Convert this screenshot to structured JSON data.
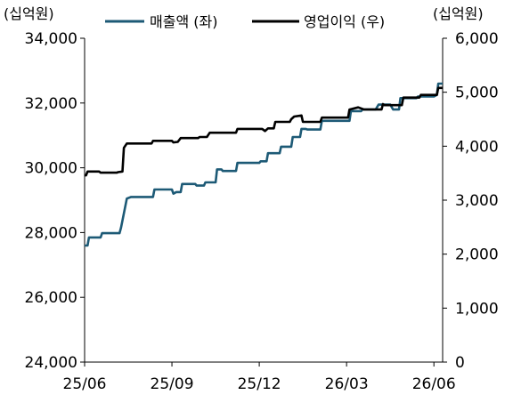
{
  "chart_data": {
    "type": "line",
    "title": "",
    "y_left_unit": "(십억원)",
    "y_right_unit": "(십억원)",
    "x_tick_labels": [
      "25/06",
      "25/09",
      "25/12",
      "26/03",
      "26/06"
    ],
    "y_left_ticks": [
      "24,000",
      "26,000",
      "28,000",
      "30,000",
      "32,000",
      "34,000"
    ],
    "y_right_ticks": [
      "0",
      "1,000",
      "2,000",
      "3,000",
      "4,000",
      "5,000",
      "6,000"
    ],
    "y_left_range": [
      24000,
      34000
    ],
    "y_right_range": [
      0,
      6000
    ],
    "x_range_months": [
      0,
      12.3
    ],
    "legend_position": "top",
    "grid": false,
    "series": [
      {
        "name": "매출액 (좌)",
        "axis": "left",
        "color": "#1d5a76",
        "points": [
          [
            0.0,
            27600
          ],
          [
            0.1,
            27600
          ],
          [
            0.15,
            27850
          ],
          [
            0.45,
            27850
          ],
          [
            0.55,
            27850
          ],
          [
            0.6,
            27980
          ],
          [
            1.2,
            27980
          ],
          [
            1.25,
            28150
          ],
          [
            1.45,
            29050
          ],
          [
            1.6,
            29100
          ],
          [
            2.3,
            29100
          ],
          [
            2.35,
            29100
          ],
          [
            2.4,
            29330
          ],
          [
            3.0,
            29330
          ],
          [
            3.05,
            29200
          ],
          [
            3.15,
            29250
          ],
          [
            3.3,
            29250
          ],
          [
            3.35,
            29500
          ],
          [
            3.8,
            29500
          ],
          [
            3.85,
            29450
          ],
          [
            4.1,
            29450
          ],
          [
            4.15,
            29550
          ],
          [
            4.5,
            29550
          ],
          [
            4.55,
            29950
          ],
          [
            4.7,
            29950
          ],
          [
            4.75,
            29900
          ],
          [
            5.2,
            29900
          ],
          [
            5.25,
            30150
          ],
          [
            6.0,
            30150
          ],
          [
            6.05,
            30200
          ],
          [
            6.25,
            30200
          ],
          [
            6.3,
            30450
          ],
          [
            6.7,
            30450
          ],
          [
            6.75,
            30650
          ],
          [
            7.1,
            30650
          ],
          [
            7.15,
            30950
          ],
          [
            7.4,
            30950
          ],
          [
            7.45,
            31200
          ],
          [
            7.6,
            31200
          ],
          [
            7.65,
            31180
          ],
          [
            8.1,
            31180
          ],
          [
            8.15,
            31450
          ],
          [
            9.1,
            31450
          ],
          [
            9.15,
            31750
          ],
          [
            9.5,
            31750
          ],
          [
            9.55,
            31800
          ],
          [
            10.0,
            31800
          ],
          [
            10.1,
            31950
          ],
          [
            10.5,
            31950
          ],
          [
            10.6,
            31800
          ],
          [
            10.8,
            31800
          ],
          [
            10.85,
            32150
          ],
          [
            11.4,
            32150
          ],
          [
            11.45,
            32200
          ],
          [
            12.0,
            32200
          ],
          [
            12.1,
            32250
          ],
          [
            12.15,
            32600
          ],
          [
            12.3,
            32600
          ]
        ]
      },
      {
        "name": "영업이익 (우)",
        "axis": "right",
        "color": "#000000",
        "points": [
          [
            0.0,
            3460
          ],
          [
            0.05,
            3460
          ],
          [
            0.1,
            3530
          ],
          [
            0.5,
            3530
          ],
          [
            0.55,
            3510
          ],
          [
            1.1,
            3510
          ],
          [
            1.15,
            3520
          ],
          [
            1.3,
            3530
          ],
          [
            1.35,
            3970
          ],
          [
            1.45,
            4050
          ],
          [
            1.6,
            4050
          ],
          [
            2.3,
            4050
          ],
          [
            2.35,
            4100
          ],
          [
            3.0,
            4100
          ],
          [
            3.05,
            4070
          ],
          [
            3.2,
            4080
          ],
          [
            3.3,
            4150
          ],
          [
            3.9,
            4150
          ],
          [
            3.95,
            4170
          ],
          [
            4.2,
            4170
          ],
          [
            4.3,
            4250
          ],
          [
            5.2,
            4250
          ],
          [
            5.25,
            4320
          ],
          [
            6.1,
            4320
          ],
          [
            6.2,
            4280
          ],
          [
            6.3,
            4330
          ],
          [
            6.5,
            4330
          ],
          [
            6.55,
            4450
          ],
          [
            7.05,
            4450
          ],
          [
            7.1,
            4500
          ],
          [
            7.2,
            4550
          ],
          [
            7.45,
            4570
          ],
          [
            7.5,
            4450
          ],
          [
            8.1,
            4450
          ],
          [
            8.15,
            4530
          ],
          [
            8.4,
            4530
          ],
          [
            9.05,
            4530
          ],
          [
            9.1,
            4680
          ],
          [
            9.4,
            4720
          ],
          [
            9.6,
            4680
          ],
          [
            10.2,
            4680
          ],
          [
            10.25,
            4780
          ],
          [
            10.3,
            4760
          ],
          [
            10.9,
            4760
          ],
          [
            10.95,
            4900
          ],
          [
            11.5,
            4900
          ],
          [
            11.55,
            4950
          ],
          [
            12.1,
            4950
          ],
          [
            12.15,
            5080
          ],
          [
            12.3,
            5080
          ]
        ]
      }
    ]
  }
}
